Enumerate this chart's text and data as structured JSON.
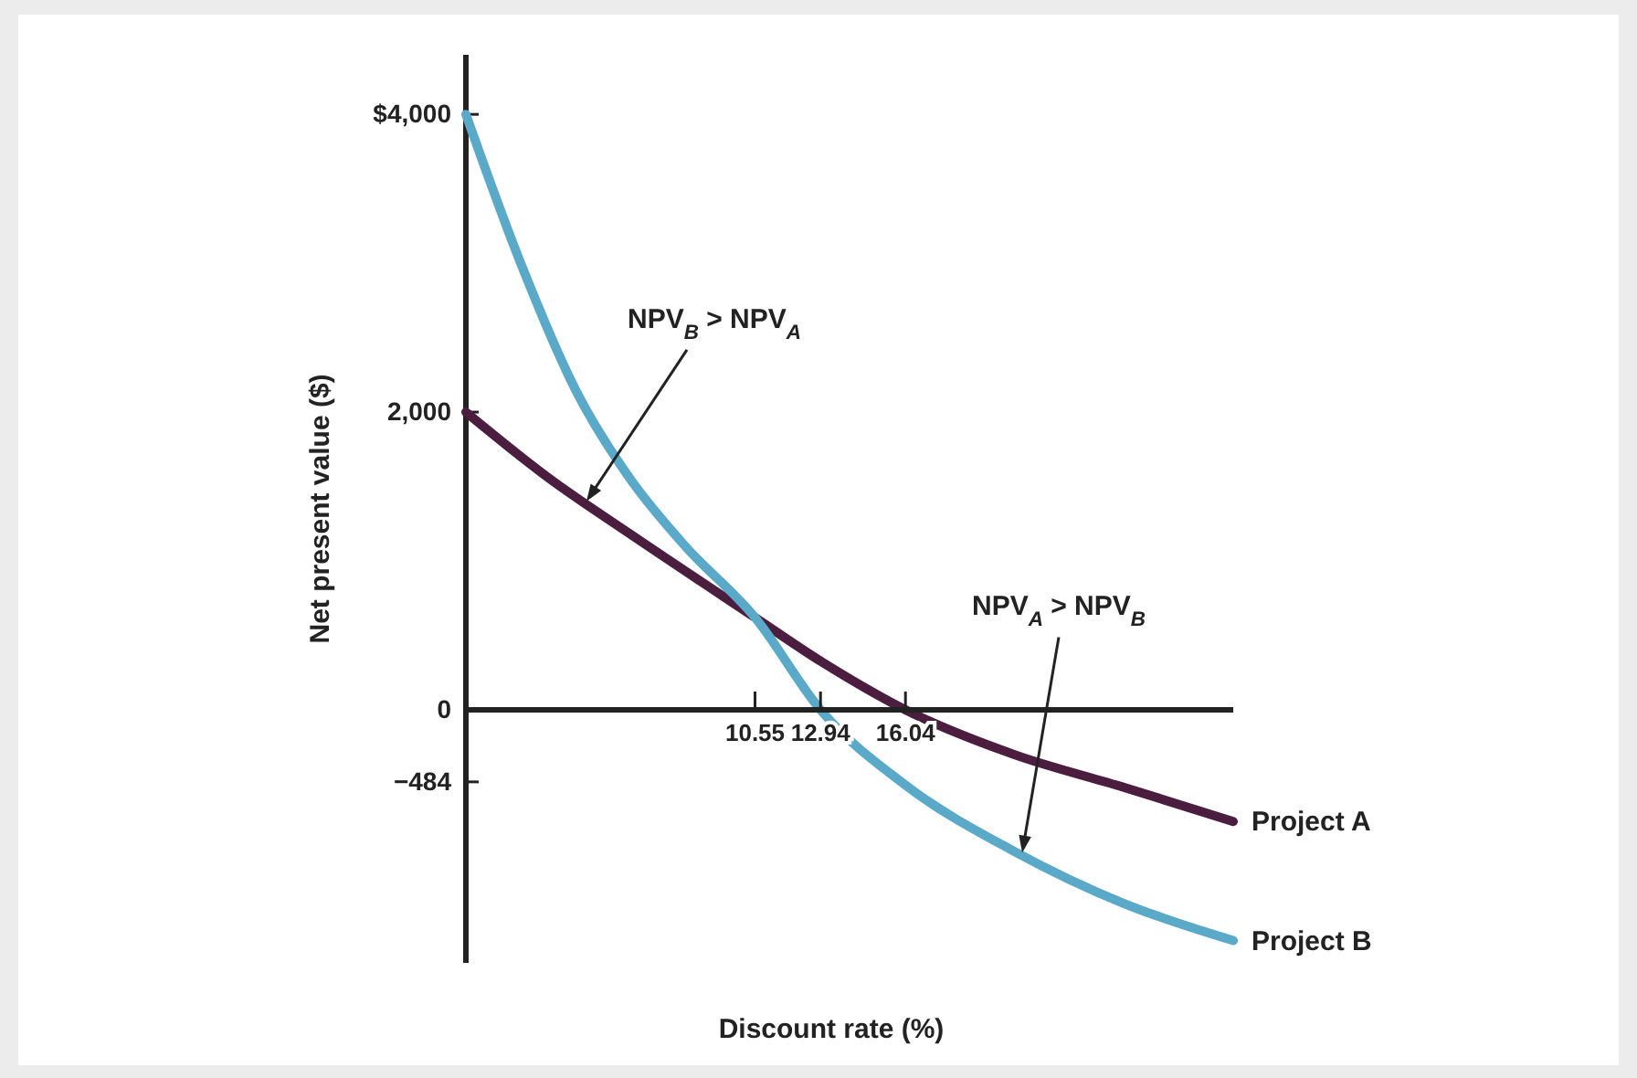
{
  "chart_data": {
    "type": "line",
    "xlabel": "Discount rate (%)",
    "ylabel": "Net present value ($)",
    "xlim": [
      0,
      28
    ],
    "xticks": [
      10.55,
      12.94,
      16.04
    ],
    "ylim": [
      -1700,
      4400
    ],
    "yticks": [
      {
        "value": 4000,
        "label": "$4,000"
      },
      {
        "value": 2000,
        "label": "2,000"
      },
      0,
      {
        "value": -484,
        "label": "−484"
      }
    ],
    "series": [
      {
        "name": "Project A",
        "color": "#4b1e3f",
        "x": [
          0,
          3,
          6,
          10.55,
          13,
          16.04,
          20,
          24,
          28
        ],
        "values": [
          2000,
          1560,
          1180,
          620,
          320,
          0,
          -300,
          -520,
          -750
        ]
      },
      {
        "name": "Project B",
        "color": "#5aa9c9",
        "x": [
          0,
          2,
          4,
          6,
          8,
          10.55,
          12.94,
          16,
          20,
          24,
          28
        ],
        "values": [
          4000,
          3000,
          2150,
          1550,
          1100,
          620,
          0,
          -500,
          -950,
          -1300,
          -1550
        ]
      }
    ],
    "annotations": [
      {
        "text": "NPV$_{B}$ > NPV$_{A}$",
        "x": 4.4,
        "y": 1400
      },
      {
        "text": "NPV$_{A}$ > NPV$_{B}$",
        "x": 20.3,
        "y": -960
      }
    ]
  }
}
